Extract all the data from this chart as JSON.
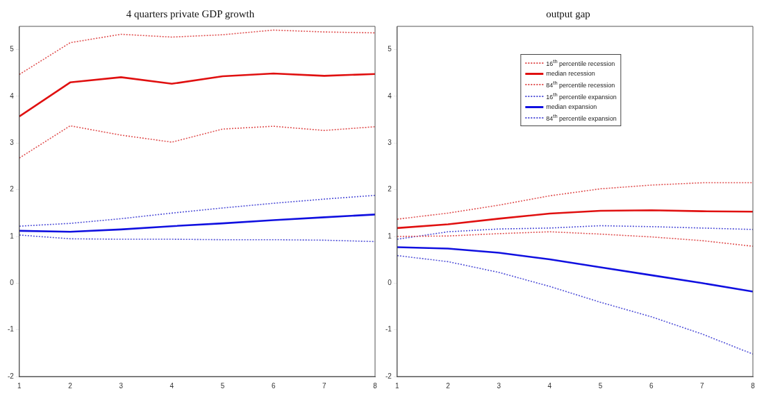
{
  "chart_data": [
    {
      "type": "line",
      "title": "4 quarters private GDP growth",
      "x": [
        1,
        2,
        3,
        4,
        5,
        6,
        7,
        8
      ],
      "xlim": [
        1,
        8
      ],
      "xticks": [
        1,
        2,
        3,
        4,
        5,
        6,
        7,
        8
      ],
      "ylim": [
        -2,
        5.5
      ],
      "yticks": [
        -2,
        -1,
        0,
        1,
        2,
        3,
        4,
        5
      ],
      "grid": false,
      "legend": false,
      "series": [
        {
          "color": "#e05050",
          "line_style": "dotted",
          "values": [
            2.68,
            3.37,
            3.17,
            3.02,
            3.3,
            3.36,
            3.27,
            3.35
          ]
        },
        {
          "color": "#e01010",
          "line_style": "solid",
          "values": [
            3.57,
            4.3,
            4.41,
            4.27,
            4.43,
            4.49,
            4.44,
            4.48
          ]
        },
        {
          "color": "#e05050",
          "line_style": "dotted",
          "values": [
            4.47,
            5.15,
            5.33,
            5.27,
            5.32,
            5.42,
            5.38,
            5.36
          ]
        },
        {
          "color": "#5050d8",
          "line_style": "dotted",
          "values": [
            1.03,
            0.95,
            0.94,
            0.94,
            0.93,
            0.93,
            0.92,
            0.89
          ]
        },
        {
          "color": "#1010e0",
          "line_style": "solid",
          "values": [
            1.12,
            1.1,
            1.15,
            1.22,
            1.28,
            1.35,
            1.41,
            1.47
          ]
        },
        {
          "color": "#5050d8",
          "line_style": "dotted",
          "values": [
            1.22,
            1.28,
            1.38,
            1.5,
            1.61,
            1.71,
            1.8,
            1.88
          ]
        }
      ]
    },
    {
      "type": "line",
      "title": "output gap",
      "x": [
        1,
        2,
        3,
        4,
        5,
        6,
        7,
        8
      ],
      "xlim": [
        1,
        8
      ],
      "xticks": [
        1,
        2,
        3,
        4,
        5,
        6,
        7,
        8
      ],
      "ylim": [
        -2,
        5.5
      ],
      "yticks": [
        -2,
        -1,
        0,
        1,
        2,
        3,
        4,
        5
      ],
      "grid": false,
      "legend": "top",
      "series": [
        {
          "name": "16$^{th}$ percentile recession",
          "color": "#e05050",
          "line_style": "dotted",
          "values": [
            1.0,
            1.01,
            1.06,
            1.1,
            1.05,
            0.99,
            0.91,
            0.79
          ]
        },
        {
          "name": "median recession",
          "color": "#e01010",
          "line_style": "solid",
          "values": [
            1.18,
            1.26,
            1.38,
            1.49,
            1.55,
            1.56,
            1.54,
            1.53
          ]
        },
        {
          "name": "84$^{th}$ percentile recession",
          "color": "#e05050",
          "line_style": "dotted",
          "values": [
            1.37,
            1.5,
            1.67,
            1.87,
            2.02,
            2.1,
            2.15,
            2.15
          ]
        },
        {
          "name": "16$^{th}$ percentile expansion",
          "color": "#5050d8",
          "line_style": "dotted",
          "values": [
            0.59,
            0.46,
            0.23,
            -0.07,
            -0.41,
            -0.72,
            -1.09,
            -1.52
          ]
        },
        {
          "name": "median expansion",
          "color": "#1010e0",
          "line_style": "solid",
          "values": [
            0.77,
            0.74,
            0.65,
            0.51,
            0.34,
            0.17,
            0.0,
            -0.18
          ]
        },
        {
          "name": "84$^{th}$ percentile expansion",
          "color": "#5050d8",
          "line_style": "dotted",
          "values": [
            0.94,
            1.1,
            1.16,
            1.18,
            1.23,
            1.21,
            1.18,
            1.15
          ]
        }
      ]
    }
  ]
}
